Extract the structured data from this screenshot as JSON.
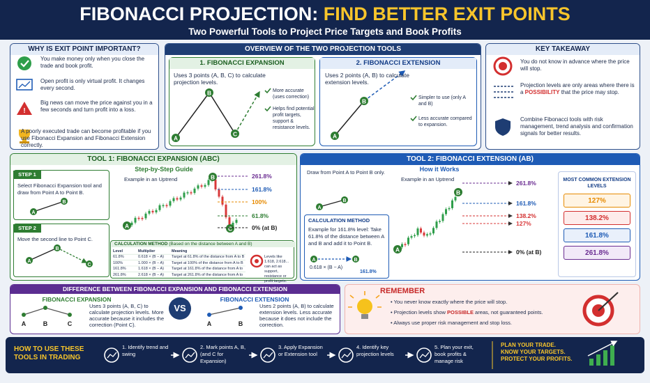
{
  "header": {
    "title_a": "FIBONACCI PROJECTION:",
    "title_b": "FIND BETTER EXIT POINTS",
    "subtitle": "Two Powerful Tools to Project Price Targets and Book Profits"
  },
  "why": {
    "title": "WHY IS EXIT POINT IMPORTANT?",
    "items": [
      "You make money only when you close the trade and book profit.",
      "Open profit is only virtual profit. It changes every second.",
      "Big news can move the price against you in a few seconds and turn profit into a loss.",
      "A poorly executed trade can become profitable if you use Fibonacci Expansion and Fibonacci Extension correctly."
    ]
  },
  "overview": {
    "title": "OVERVIEW OF THE TWO PROJECTION TOOLS",
    "expansion": {
      "title": "1. FIBONACCI EXPANSION",
      "text": "Uses 3 points (A, B, C) to calculate projection levels.",
      "points": [
        "A",
        "B",
        "C"
      ],
      "notes": [
        "More accurate (uses correction)",
        "Helps find potential profit targets, support & resistance levels."
      ]
    },
    "extension": {
      "title": "2. FIBONACCI EXTENSION",
      "text": "Uses 2 points (A, B) to calculate extension levels.",
      "points": [
        "A",
        "B"
      ],
      "notes": [
        "Simpler to use (only A and B)",
        "Less accurate compared to expansion."
      ]
    }
  },
  "takeaway": {
    "title": "KEY TAKEAWAY",
    "items": [
      [
        "You do not know in advance where the price will stop."
      ],
      [
        "Projection levels are only areas where there is a ",
        "POSSIBILITY",
        " that the price may stop."
      ],
      [
        "Combine Fibonacci tools with risk management, trend analysis and confirmation signals for better results."
      ]
    ]
  },
  "tool1": {
    "title": "TOOL 1: FIBONACCI EXPANSION (ABC)",
    "guide": "Step-by-Step Guide",
    "example": "Example in an Uptrend",
    "steps": [
      {
        "label": "STEP 1",
        "text": "Select Fibonacci Expansion tool and draw from Point A to Point B.",
        "points": [
          "A",
          "B"
        ]
      },
      {
        "label": "STEP 2",
        "text": "Move the second line to Point C.",
        "points": [
          "A",
          "B",
          "C"
        ]
      }
    ],
    "points": [
      "A",
      "B",
      "C"
    ],
    "levels": [
      "261.8%",
      "161.8%",
      "100%",
      "61.8%",
      "0% (at B)"
    ],
    "method": {
      "title": "CALCULATION METHOD",
      "subtitle": "(Based on the distance between A and B)",
      "headers": [
        "Level",
        "Multiplier",
        "Meaning"
      ],
      "rows": [
        [
          "61.8%",
          "0.618 × (B − A)",
          "Target at 61.8% of the distance from A to B"
        ],
        [
          "100%",
          "1.000 × (B − A)",
          "Target at 100% of the distance from A to B"
        ],
        [
          "161.8%",
          "1.618 × (B − A)",
          "Target at 161.8% of the distance from A to B"
        ],
        [
          "261.8%",
          "2.618 × (B − A)",
          "Target at 261.8% of the distance from A to B"
        ]
      ]
    },
    "note": "Levels like 1.618, 2.618... can act as support, resistance or profit targets."
  },
  "tool2": {
    "title": "TOOL 2: FIBONACCI EXTENSION (AB)",
    "draw": "Draw from Point A to Point B only.",
    "how": "How it Works",
    "example": "Example in an Uptrend",
    "draw_points": [
      "A",
      "B"
    ],
    "points": [
      "A",
      "B"
    ],
    "levels": [
      "261.8%",
      "161.8%",
      "138.2%",
      "127%",
      "0% (at B)"
    ],
    "method": {
      "title": "CALCULATION METHOD",
      "text": "Example for 161.8% level: Take 61.8% of the distance between A and B and add it to Point B.",
      "points": [
        "A",
        "B"
      ],
      "formula": "0.618 × (B − A)",
      "result": "161.8%"
    },
    "common": {
      "title": "MOST COMMON EXTENSION LEVELS",
      "levels": [
        "127%",
        "138.2%",
        "161.8%",
        "261.8%"
      ]
    }
  },
  "difference": {
    "title": "DIFFERENCE BETWEEN FIBONACCI EXPANSION AND FIBONACCI EXTENSION",
    "expansion": {
      "title": "FIBONACCI EXPANSION",
      "points": [
        "A",
        "B",
        "C"
      ],
      "text": "Uses 3 points (A, B, C) to calculate projection levels. More accurate because it includes the correction (Point C)."
    },
    "vs": "VS",
    "extension": {
      "title": "FIBONACCI EXTENSION",
      "points": [
        "A",
        "B"
      ],
      "text": "Uses 2 points (A, B) to calculate extension levels. Less accurate because it does not include the correction."
    }
  },
  "remember": {
    "title": "REMEMBER",
    "items": [
      [
        "You never know exactly where the price will stop."
      ],
      [
        "Projection levels show ",
        "POSSIBLE",
        " areas, not guaranteed points."
      ],
      [
        "Always use proper risk management and stop loss."
      ]
    ]
  },
  "howto": {
    "title": "HOW TO USE THESE TOOLS IN TRADING",
    "steps": [
      "1. Identify trend and swing",
      "2. Mark points A, B, (and C for Expansion)",
      "3. Apply Expansion or Extension tool",
      "4. Identify key projection levels",
      "5. Plan your exit, book profits & manage risk"
    ],
    "slogan": [
      "PLAN YOUR TRADE.",
      "KNOW YOUR TARGETS.",
      "PROTECT YOUR PROFITS."
    ]
  }
}
